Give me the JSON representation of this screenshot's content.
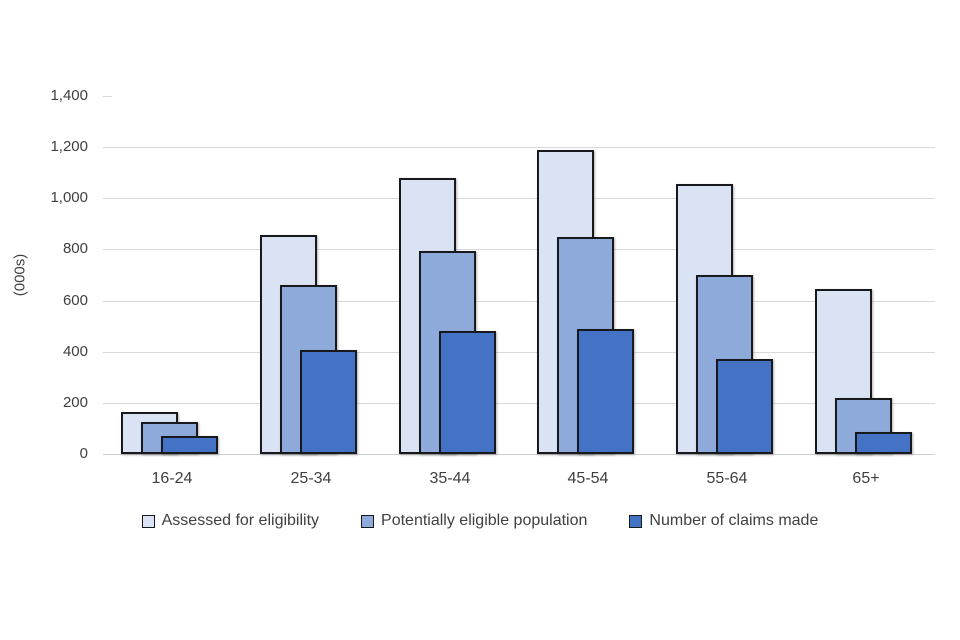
{
  "chart_data": {
    "type": "bar",
    "title": "",
    "categories": [
      "16-24",
      "25-34",
      "35-44",
      "45-54",
      "55-64",
      "65+"
    ],
    "series": [
      {
        "name": "Assessed for eligibility",
        "color": "#dae3f3",
        "values": [
          165,
          855,
          1080,
          1190,
          1055,
          645
        ]
      },
      {
        "name": "Potentially eligible population",
        "color": "#8eaadb",
        "values": [
          125,
          660,
          795,
          850,
          700,
          220
        ]
      },
      {
        "name": "Number of claims made",
        "color": "#4472c4",
        "values": [
          70,
          405,
          480,
          490,
          370,
          85
        ]
      }
    ],
    "xlabel": "",
    "ylabel": "(000s)",
    "ylim": [
      0,
      1400
    ],
    "ytick_step": 200,
    "ytick_labels": [
      "0",
      "200",
      "400",
      "600",
      "800",
      "1,000",
      "1,200",
      "1,400"
    ],
    "grid": true,
    "legend_position": "bottom",
    "bar_layout": "overlapped",
    "colors": {
      "bar_outline": "#17191c",
      "gridline": "#d9d9d9",
      "axis_line": "#cfcfcf",
      "text": "#404040",
      "background": "#ffffff"
    }
  }
}
